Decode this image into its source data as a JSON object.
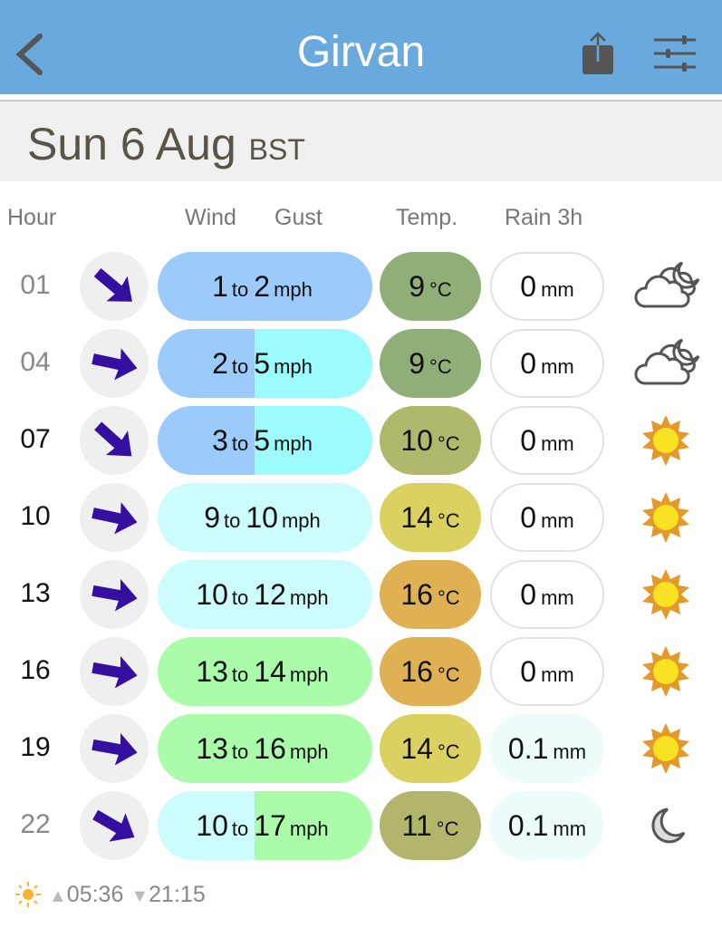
{
  "header": {
    "title": "Girvan",
    "back_icon": "chevron-left-icon",
    "share_icon": "share-icon",
    "settings_icon": "sliders-icon"
  },
  "date": {
    "day": "Sun 6 Aug",
    "tz": "BST"
  },
  "columns": {
    "hour": "Hour",
    "wind": "Wind",
    "gust": "Gust",
    "temp": "Temp.",
    "rain": "Rain 3h"
  },
  "units": {
    "to": "to",
    "wind": "mph",
    "temp": "°C",
    "rain": "mm"
  },
  "rows": [
    {
      "hour": "01",
      "night": true,
      "dir_deg": 40,
      "wind": "1",
      "gust": "2",
      "wc": "#9ccbfb",
      "gc": "#9ccbfb",
      "temp": "9",
      "tc": "#8fae78",
      "rain": "0",
      "rc": "#ffffff",
      "icon": "cloud-moon-icon"
    },
    {
      "hour": "04",
      "night": true,
      "dir_deg": 12,
      "wind": "2",
      "gust": "5",
      "wc": "#9ccbfb",
      "gc": "#9cfbfb",
      "temp": "9",
      "tc": "#8fae78",
      "rain": "0",
      "rc": "#ffffff",
      "icon": "cloud-moon-icon"
    },
    {
      "hour": "07",
      "night": false,
      "dir_deg": 42,
      "wind": "3",
      "gust": "5",
      "wc": "#9ccbfb",
      "gc": "#9cfbfb",
      "temp": "10",
      "tc": "#b1b86c",
      "rain": "0",
      "rc": "#ffffff",
      "icon": "sun-icon"
    },
    {
      "hour": "10",
      "night": false,
      "dir_deg": 12,
      "wind": "9",
      "gust": "10",
      "wc": "#ccfcfc",
      "gc": "#ccfcfc",
      "temp": "14",
      "tc": "#dbd160",
      "rain": "0",
      "rc": "#ffffff",
      "icon": "sun-icon"
    },
    {
      "hour": "13",
      "night": false,
      "dir_deg": 10,
      "wind": "10",
      "gust": "12",
      "wc": "#ccfcfc",
      "gc": "#ccfcfc",
      "temp": "16",
      "tc": "#dfb152",
      "rain": "0",
      "rc": "#ffffff",
      "icon": "sun-icon"
    },
    {
      "hour": "16",
      "night": false,
      "dir_deg": 10,
      "wind": "13",
      "gust": "14",
      "wc": "#aafcaa",
      "gc": "#aafcaa",
      "temp": "16",
      "tc": "#dfb152",
      "rain": "0",
      "rc": "#ffffff",
      "icon": "sun-icon"
    },
    {
      "hour": "19",
      "night": false,
      "dir_deg": 10,
      "wind": "13",
      "gust": "16",
      "wc": "#aafcaa",
      "gc": "#aafcaa",
      "temp": "14",
      "tc": "#dbd160",
      "rain": "0.1",
      "rc": "#eefcfc",
      "icon": "sun-icon"
    },
    {
      "hour": "22",
      "night": true,
      "dir_deg": 30,
      "wind": "10",
      "gust": "17",
      "wc": "#ccfcfc",
      "gc": "#aafcaa",
      "temp": "11",
      "tc": "#b1b66c",
      "rain": "0.1",
      "rc": "#eefcfc",
      "icon": "moon-icon"
    }
  ],
  "footer": {
    "sunrise": "05:36",
    "sunset": "21:15",
    "sun_icon": "sun-icon"
  },
  "colors": {
    "header": "#6aa9de",
    "arrow": "#3510a0"
  }
}
